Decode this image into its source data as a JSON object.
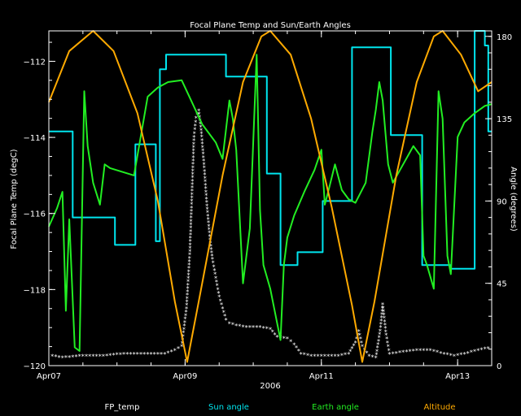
{
  "chart_data": {
    "type": "line",
    "title": "Focal Plane Temp and Sun/Earth Angles",
    "xlabel": "2006",
    "ylabel_left": "Focal Plane Temp (degC)",
    "ylabel_right": "Angle (degrees)",
    "x_ticks": [
      {
        "t": 0.0,
        "label": "Apr07"
      },
      {
        "t": 2.0,
        "label": "Apr09"
      },
      {
        "t": 4.0,
        "label": "Apr11"
      },
      {
        "t": 6.0,
        "label": "Apr13"
      }
    ],
    "x_range_days": [
      0,
      6.5
    ],
    "ylim_left": [
      -120,
      -111.2
    ],
    "yticks_left": [
      -112,
      -114,
      -116,
      -118,
      -120
    ],
    "ylim_right": [
      0,
      183
    ],
    "yticks_right": [
      180,
      135,
      90,
      45,
      0
    ],
    "colors": {
      "axes": "#ffffff",
      "FP_temp": "#ffffff",
      "Sun angle": "#00e5ee",
      "Earth angle": "#22ee22",
      "Altitude": "#ffaa00"
    },
    "legend": [
      "FP_temp",
      "Sun angle",
      "Earth angle",
      "Altitude"
    ],
    "series": [
      {
        "name": "FP_temp",
        "axis": "left",
        "marker": "asterisk",
        "points": [
          [
            0.05,
            -119.75
          ],
          [
            0.2,
            -119.8
          ],
          [
            0.5,
            -119.75
          ],
          [
            0.8,
            -119.75
          ],
          [
            1.1,
            -119.7
          ],
          [
            1.4,
            -119.7
          ],
          [
            1.7,
            -119.7
          ],
          [
            1.85,
            -119.6
          ],
          [
            1.95,
            -119.5
          ],
          [
            2.02,
            -118.5
          ],
          [
            2.07,
            -117.0
          ],
          [
            2.1,
            -115.5
          ],
          [
            2.13,
            -114.0
          ],
          [
            2.16,
            -113.5
          ],
          [
            2.2,
            -113.3
          ],
          [
            2.24,
            -113.9
          ],
          [
            2.28,
            -114.8
          ],
          [
            2.32,
            -115.8
          ],
          [
            2.36,
            -116.6
          ],
          [
            2.4,
            -117.2
          ],
          [
            2.45,
            -117.7
          ],
          [
            2.5,
            -118.2
          ],
          [
            2.55,
            -118.5
          ],
          [
            2.6,
            -118.8
          ],
          [
            2.65,
            -118.9
          ],
          [
            2.75,
            -118.95
          ],
          [
            2.9,
            -119.0
          ],
          [
            3.1,
            -119.0
          ],
          [
            3.25,
            -119.05
          ],
          [
            3.35,
            -119.25
          ],
          [
            3.5,
            -119.3
          ],
          [
            3.6,
            -119.45
          ],
          [
            3.7,
            -119.7
          ],
          [
            3.85,
            -119.75
          ],
          [
            4.05,
            -119.75
          ],
          [
            4.25,
            -119.75
          ],
          [
            4.4,
            -119.7
          ],
          [
            4.5,
            -119.4
          ],
          [
            4.55,
            -119.1
          ],
          [
            4.6,
            -119.5
          ],
          [
            4.7,
            -119.75
          ],
          [
            4.8,
            -119.8
          ],
          [
            4.87,
            -119.0
          ],
          [
            4.9,
            -118.4
          ],
          [
            4.95,
            -119.2
          ],
          [
            5.0,
            -119.7
          ],
          [
            5.2,
            -119.65
          ],
          [
            5.4,
            -119.6
          ],
          [
            5.6,
            -119.6
          ],
          [
            5.8,
            -119.7
          ],
          [
            5.95,
            -119.75
          ],
          [
            6.1,
            -119.7
          ],
          [
            6.3,
            -119.6
          ],
          [
            6.45,
            -119.55
          ]
        ]
      },
      {
        "name": "Sun angle",
        "axis": "right",
        "points": [
          [
            0.0,
            128
          ],
          [
            0.35,
            128
          ],
          [
            0.35,
            81
          ],
          [
            0.97,
            81
          ],
          [
            0.97,
            66
          ],
          [
            1.27,
            66
          ],
          [
            1.27,
            121
          ],
          [
            1.57,
            121
          ],
          [
            1.57,
            68
          ],
          [
            1.63,
            68
          ],
          [
            1.63,
            162
          ],
          [
            1.72,
            162
          ],
          [
            1.72,
            170
          ],
          [
            2.6,
            170
          ],
          [
            2.6,
            158
          ],
          [
            3.2,
            158
          ],
          [
            3.2,
            105
          ],
          [
            3.4,
            105
          ],
          [
            3.4,
            55
          ],
          [
            3.65,
            55
          ],
          [
            3.65,
            62
          ],
          [
            4.02,
            62
          ],
          [
            4.02,
            90
          ],
          [
            4.45,
            90
          ],
          [
            4.45,
            174
          ],
          [
            5.02,
            174
          ],
          [
            5.02,
            126
          ],
          [
            5.48,
            126
          ],
          [
            5.48,
            55
          ],
          [
            5.9,
            55
          ],
          [
            5.9,
            53
          ],
          [
            6.25,
            53
          ],
          [
            6.25,
            183
          ],
          [
            6.4,
            183
          ],
          [
            6.4,
            175
          ],
          [
            6.45,
            175
          ],
          [
            6.45,
            128
          ],
          [
            6.5,
            128
          ]
        ]
      },
      {
        "name": "Earth angle",
        "axis": "right",
        "points": [
          [
            0.0,
            76
          ],
          [
            0.12,
            86
          ],
          [
            0.2,
            95
          ],
          [
            0.25,
            30
          ],
          [
            0.3,
            80
          ],
          [
            0.38,
            10
          ],
          [
            0.45,
            8
          ],
          [
            0.52,
            150
          ],
          [
            0.57,
            120
          ],
          [
            0.65,
            100
          ],
          [
            0.75,
            88
          ],
          [
            0.82,
            110
          ],
          [
            0.9,
            108
          ],
          [
            1.25,
            104
          ],
          [
            1.45,
            147
          ],
          [
            1.6,
            152
          ],
          [
            1.75,
            155
          ],
          [
            1.95,
            156
          ],
          [
            2.05,
            148
          ],
          [
            2.25,
            132
          ],
          [
            2.45,
            122
          ],
          [
            2.55,
            113
          ],
          [
            2.65,
            145
          ],
          [
            2.7,
            135
          ],
          [
            2.75,
            118
          ],
          [
            2.85,
            45
          ],
          [
            2.95,
            75
          ],
          [
            3.05,
            170
          ],
          [
            3.1,
            85
          ],
          [
            3.15,
            55
          ],
          [
            3.25,
            42
          ],
          [
            3.4,
            14
          ],
          [
            3.45,
            55
          ],
          [
            3.5,
            70
          ],
          [
            3.6,
            82
          ],
          [
            3.75,
            95
          ],
          [
            3.9,
            107
          ],
          [
            4.0,
            118
          ],
          [
            4.05,
            88
          ],
          [
            4.1,
            95
          ],
          [
            4.2,
            110
          ],
          [
            4.3,
            96
          ],
          [
            4.4,
            91
          ],
          [
            4.5,
            89
          ],
          [
            4.65,
            100
          ],
          [
            4.75,
            128
          ],
          [
            4.8,
            140
          ],
          [
            4.85,
            155
          ],
          [
            4.9,
            145
          ],
          [
            4.98,
            110
          ],
          [
            5.05,
            100
          ],
          [
            5.2,
            110
          ],
          [
            5.35,
            120
          ],
          [
            5.45,
            115
          ],
          [
            5.5,
            60
          ],
          [
            5.55,
            55
          ],
          [
            5.65,
            42
          ],
          [
            5.72,
            150
          ],
          [
            5.78,
            135
          ],
          [
            5.85,
            60
          ],
          [
            5.9,
            50
          ],
          [
            6.0,
            125
          ],
          [
            6.1,
            133
          ],
          [
            6.25,
            138
          ],
          [
            6.4,
            142
          ],
          [
            6.5,
            143
          ]
        ]
      },
      {
        "name": "Altitude",
        "axis": "right",
        "points": [
          [
            0.0,
            144
          ],
          [
            0.3,
            172
          ],
          [
            0.65,
            183
          ],
          [
            0.95,
            172
          ],
          [
            1.3,
            138
          ],
          [
            1.6,
            90
          ],
          [
            1.85,
            35
          ],
          [
            2.03,
            2
          ],
          [
            2.2,
            35
          ],
          [
            2.55,
            104
          ],
          [
            2.85,
            155
          ],
          [
            3.12,
            180
          ],
          [
            3.25,
            183
          ],
          [
            3.55,
            170
          ],
          [
            3.85,
            135
          ],
          [
            4.15,
            87
          ],
          [
            4.45,
            33
          ],
          [
            4.6,
            2
          ],
          [
            4.78,
            35
          ],
          [
            5.1,
            104
          ],
          [
            5.4,
            155
          ],
          [
            5.65,
            180
          ],
          [
            5.78,
            183
          ],
          [
            6.05,
            170
          ],
          [
            6.3,
            150
          ],
          [
            6.5,
            155
          ]
        ]
      }
    ]
  }
}
